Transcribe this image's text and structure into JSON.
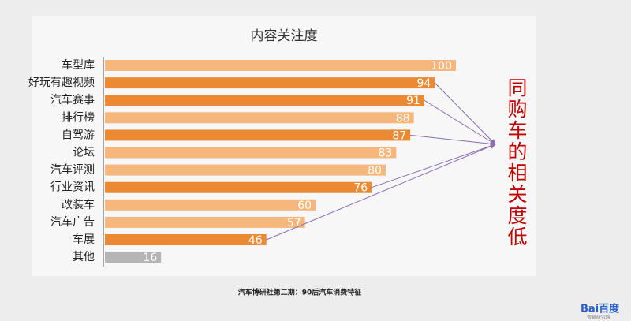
{
  "chart_data": {
    "type": "hbar",
    "title": "内容关注度",
    "categories": [
      "车型库",
      "好玩有趣视频",
      "汽车赛事",
      "排行榜",
      "自驾游",
      "论坛",
      "汽车评测",
      "行业资讯",
      "改装车",
      "汽车广告",
      "车展",
      "其他"
    ],
    "values": [
      100,
      94,
      91,
      88,
      87,
      83,
      80,
      76,
      60,
      57,
      46,
      16
    ],
    "colors": [
      "#f6b77c",
      "#ec8a33",
      "#ec8a33",
      "#f6b77c",
      "#ec8a33",
      "#f6b77c",
      "#f6b77c",
      "#ec8a33",
      "#f6b77c",
      "#f6b77c",
      "#ec8a33",
      "#b5b5b5"
    ],
    "annotation": {
      "text": "同购车的相关度低",
      "color": "#c00000",
      "arrow_color": "#8a6fb5",
      "arrow_from": [
        "好玩有趣视频",
        "汽车赛事",
        "自驾游",
        "行业资讯",
        "车展"
      ]
    },
    "source": "汽车博研社第二期：90后汽车消费特征"
  },
  "logo": {
    "text": "Bai百度",
    "subtitle": "营销研究院"
  }
}
